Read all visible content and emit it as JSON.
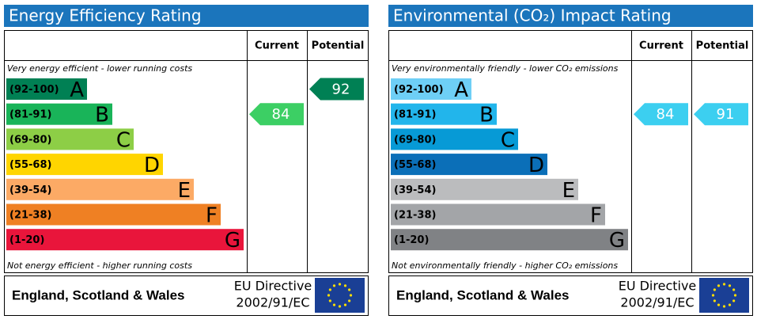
{
  "panels": [
    {
      "title": "Energy Efficiency Rating",
      "col_current": "Current",
      "col_potential": "Potential",
      "top_note": "Very energy efficient - lower running costs",
      "bottom_note": "Not energy efficient - higher running costs",
      "bands": [
        {
          "range": "(92-100)",
          "letter": "A",
          "color": "#008054"
        },
        {
          "range": "(81-91)",
          "letter": "B",
          "color": "#19b459"
        },
        {
          "range": "(69-80)",
          "letter": "C",
          "color": "#8dce46"
        },
        {
          "range": "(55-68)",
          "letter": "D",
          "color": "#ffd500"
        },
        {
          "range": "(39-54)",
          "letter": "E",
          "color": "#fcaa65"
        },
        {
          "range": "(21-38)",
          "letter": "F",
          "color": "#ef8023"
        },
        {
          "range": "(1-20)",
          "letter": "G",
          "color": "#e9153b"
        }
      ],
      "current": 84,
      "current_color": "#3ccf64",
      "potential": 92,
      "potential_color": "#008054",
      "footer": "England, Scotland & Wales",
      "directive": [
        "EU Directive",
        "2002/91/EC"
      ]
    },
    {
      "title": "Environmental (CO₂) Impact Rating",
      "col_current": "Current",
      "col_potential": "Potential",
      "top_note": "Very environmentally friendly - lower CO₂ emissions",
      "bottom_note": "Not environmentally friendly - higher CO₂ emissions",
      "bands": [
        {
          "range": "(92-100)",
          "letter": "A",
          "color": "#6ecff6"
        },
        {
          "range": "(81-91)",
          "letter": "B",
          "color": "#22b5eb"
        },
        {
          "range": "(69-80)",
          "letter": "C",
          "color": "#079ad6"
        },
        {
          "range": "(55-68)",
          "letter": "D",
          "color": "#0b6fb8"
        },
        {
          "range": "(39-54)",
          "letter": "E",
          "color": "#bbbcbe"
        },
        {
          "range": "(21-38)",
          "letter": "F",
          "color": "#a3a5a8"
        },
        {
          "range": "(1-20)",
          "letter": "G",
          "color": "#808285"
        }
      ],
      "current": 84,
      "current_color": "#3ccff0",
      "potential": 91,
      "potential_color": "#3ccff0",
      "footer": "England, Scotland & Wales",
      "directive": [
        "EU Directive",
        "2002/91/EC"
      ]
    }
  ]
}
